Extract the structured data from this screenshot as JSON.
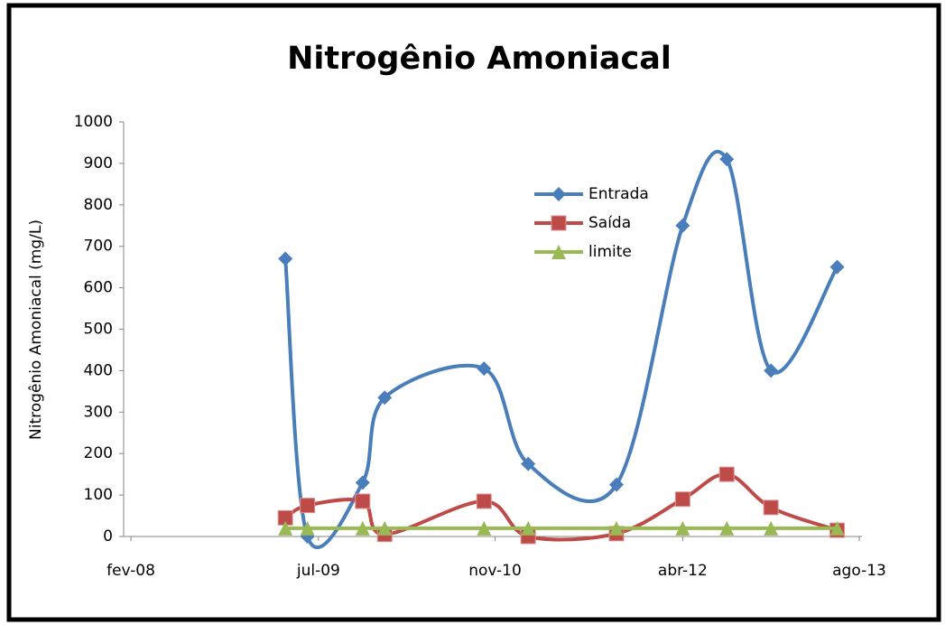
{
  "chart_data": {
    "type": "line",
    "title": "Nitrogênio Amoniacal",
    "y_label": "Nitrogênio Amoniacal (mg/L)",
    "x": [
      "2009-04",
      "2009-06",
      "2009-11",
      "2010-01",
      "2010-10",
      "2011-02",
      "2011-10",
      "2012-04",
      "2012-08",
      "2012-12",
      "2013-06"
    ],
    "series": [
      {
        "name": "Entrada",
        "color": "#4a7ebb",
        "marker": "diamond",
        "values": [
          670,
          0,
          130,
          335,
          405,
          175,
          125,
          750,
          910,
          400,
          650
        ]
      },
      {
        "name": "Saída",
        "color": "#be4b48",
        "marker": "square",
        "values": [
          45,
          75,
          85,
          5,
          85,
          0,
          7,
          90,
          150,
          70,
          15
        ]
      },
      {
        "name": "limite",
        "color": "#98b954",
        "marker": "triangle",
        "values": [
          20,
          20,
          20,
          20,
          20,
          20,
          20,
          20,
          20,
          20,
          20
        ]
      }
    ],
    "xlim": [
      "2008-02",
      "2013-08"
    ],
    "xticks": [
      {
        "value": "2008-02",
        "label": "fev-08"
      },
      {
        "value": "2009-07",
        "label": "jul-09"
      },
      {
        "value": "2010-11",
        "label": "nov-10"
      },
      {
        "value": "2012-04",
        "label": "abr-12"
      },
      {
        "value": "2013-08",
        "label": "ago-13"
      }
    ],
    "ylim": [
      0,
      1000
    ],
    "yticks": [
      0,
      100,
      200,
      300,
      400,
      500,
      600,
      700,
      800,
      900,
      1000
    ],
    "smooth": true,
    "legend": "upper-right"
  }
}
